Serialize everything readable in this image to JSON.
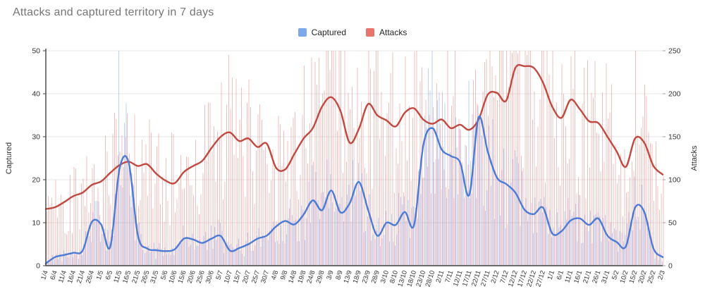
{
  "chart_data": {
    "type": "bar",
    "subtype": "combo: thin daily bars with 7-day moving-average overlay lines, dual y-axes",
    "title": "Attacks and captured territory in 7 days",
    "legend": [
      {
        "label": "Captured",
        "color": "#7da9ea"
      },
      {
        "label": "Attacks",
        "color": "#e8746c"
      }
    ],
    "legend_position": "top-center",
    "axes": {
      "left": {
        "title": "Captured",
        "ticks": [
          0,
          10,
          20,
          30,
          40,
          50
        ],
        "min": 0,
        "max": 50
      },
      "right": {
        "title": "Attacks",
        "ticks": [
          0,
          50,
          100,
          150,
          200,
          250
        ],
        "min": 0,
        "max": 250
      },
      "x": {
        "tick_step_days": 5,
        "n_days": 336,
        "grid": "horizontal-only"
      }
    },
    "x_tick_labels": [
      "1/4",
      "6/4",
      "11/4",
      "16/4",
      "21/4",
      "26/4",
      "1/5",
      "6/5",
      "11/5",
      "16/5",
      "21/5",
      "26/5",
      "31/5",
      "5/6",
      "10/6",
      "15/6",
      "20/6",
      "25/6",
      "30/6",
      "5/7",
      "10/7",
      "15/7",
      "20/7",
      "25/7",
      "30/7",
      "4/8",
      "9/8",
      "14/8",
      "19/8",
      "24/8",
      "29/8",
      "3/9",
      "8/9",
      "13/9",
      "18/9",
      "23/9",
      "28/9",
      "3/10",
      "8/10",
      "13/10",
      "18/10",
      "23/10",
      "28/10",
      "2/11",
      "7/11",
      "12/11",
      "17/11",
      "22/11",
      "27/11",
      "2/12",
      "7/12",
      "12/12",
      "17/12",
      "22/12",
      "27/12",
      "1/1",
      "6/1",
      "11/1",
      "16/1",
      "21/1",
      "26/1",
      "31/1",
      "5/2",
      "10/2",
      "15/2",
      "20/2",
      "25/2",
      "2/3"
    ],
    "series": [
      {
        "name": "Captured (7-day average)",
        "axis": "left",
        "style": "line",
        "color": "#4b7bd4",
        "values_at_ticks": [
          0.5,
          2,
          2.5,
          3,
          3.5,
          10.2,
          9.6,
          4.4,
          22.5,
          24,
          7,
          4,
          3.6,
          3.4,
          3.8,
          6.3,
          6.1,
          5.3,
          6.3,
          6.9,
          3.5,
          4.1,
          5,
          6.3,
          7,
          9.1,
          10.4,
          9.6,
          11.9,
          15.2,
          12.9,
          17.5,
          12.4,
          14.5,
          19.5,
          13,
          7,
          10,
          9.5,
          12.5,
          9.5,
          28,
          32,
          27,
          25.5,
          24,
          16.5,
          34.5,
          26.5,
          20.5,
          19,
          17,
          13,
          12,
          13.5,
          7.5,
          8,
          10.5,
          11,
          9.5,
          11,
          7,
          5.5,
          4.5,
          13.5,
          12.5,
          4,
          2
        ]
      },
      {
        "name": "Attacks (7-day average)",
        "axis": "right",
        "style": "line",
        "color": "#c0493f",
        "values_at_ticks": [
          66,
          68,
          74,
          81,
          85,
          94,
          98,
          108,
          117,
          121,
          116,
          118,
          107,
          99,
          96,
          109,
          116,
          122,
          137,
          150,
          155,
          145,
          148,
          138,
          142,
          114,
          112,
          130,
          148,
          160,
          185,
          196,
          180,
          143,
          159,
          188,
          175,
          169,
          162,
          178,
          183,
          170,
          165,
          170,
          160,
          164,
          158,
          170,
          199,
          201,
          192,
          230,
          232,
          230,
          213,
          185,
          172,
          193,
          182,
          168,
          166,
          150,
          133,
          115,
          148,
          143,
          116,
          106
        ]
      }
    ],
    "bars": {
      "description": "daily raw values drawn as thin side-by-side bars (Captured on left axis, Attacks on right axis), scattered around the 7-day average",
      "captured_color": "rgba(110,150,230,0.45)",
      "attacks_color": "rgba(225,115,110,0.45)",
      "noise_seed": 42,
      "noise_min_factor": 0.45,
      "noise_span": 1.15,
      "spikes": [
        {
          "series": "captured",
          "day": 40,
          "near_label": "11/5",
          "value": 50
        },
        {
          "series": "captured",
          "day": 210,
          "near_label": "28/10",
          "value": 50
        },
        {
          "series": "captured",
          "day": 230,
          "near_label": "17/11",
          "value": 43
        },
        {
          "series": "attacks",
          "day": 256,
          "near_label": "12/12",
          "value": 247
        },
        {
          "series": "attacks",
          "day": 261,
          "near_label": "17/12",
          "value": 245
        },
        {
          "series": "attacks",
          "day": 320,
          "near_label": "15/2",
          "value": 250
        }
      ]
    },
    "colors": {
      "title_text": "#757575",
      "axis_text": "#333333",
      "gridline": "#e4e4e4",
      "axis_spine": "#424242",
      "background": "#ffffff"
    }
  }
}
